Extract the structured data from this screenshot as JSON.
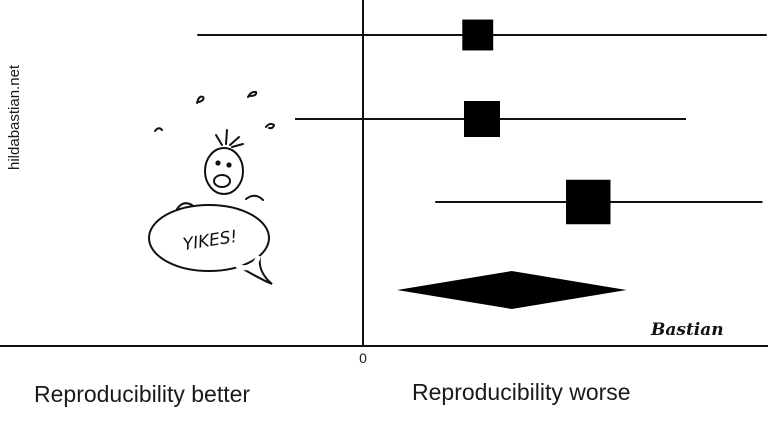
{
  "credit": {
    "site": "hildabastian.net",
    "signature": "Bastian"
  },
  "cartoon": {
    "speech": "YIKES!"
  },
  "chart_data": {
    "type": "forest",
    "xlim": [
      -1,
      1
    ],
    "x_zero_label": "0",
    "left_label": "Reproducibility better",
    "right_label": "Reproducibility worse",
    "studies": [
      {
        "estimate": 0.27,
        "ci": [
          -0.39,
          0.95
        ],
        "weight": 0.85
      },
      {
        "estimate": 0.28,
        "ci": [
          -0.16,
          0.76
        ],
        "weight": 1.0
      },
      {
        "estimate": 0.53,
        "ci": [
          0.17,
          0.94
        ],
        "weight": 1.25
      }
    ],
    "pooled": {
      "estimate": 0.35,
      "ci": [
        0.08,
        0.62
      ]
    }
  }
}
